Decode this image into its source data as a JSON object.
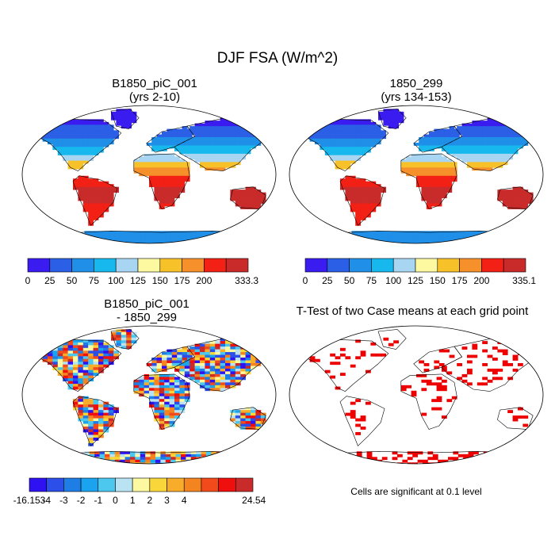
{
  "title": "DJF FSA (W/m^2)",
  "palettes": {
    "absolute": [
      "#3a1cf0",
      "#2a5fe6",
      "#1f8fe8",
      "#16b8ee",
      "#a8d6f2",
      "#fcf9a0",
      "#f7c12a",
      "#f5902a",
      "#f22015",
      "#c92b2b"
    ],
    "difference": [
      "#2e12f2",
      "#2b4fe8",
      "#1f7ee6",
      "#1aa3ee",
      "#4cc8ef",
      "#b9e3f2",
      "#fcf9a0",
      "#f9d63a",
      "#f7ad2a",
      "#f48420",
      "#f24a1a",
      "#ef100e",
      "#c92b2b"
    ],
    "significance": "#ee0000"
  },
  "panels": {
    "case1": {
      "title_line1": "B1850_piC_001",
      "title_line2": "(yrs 2-10)",
      "colorbar_labels": [
        "0",
        "25",
        "50",
        "75",
        "100",
        "125",
        "150",
        "175",
        "200",
        "333.3"
      ]
    },
    "case2": {
      "title_line1": "1850_299",
      "title_line2": "(yrs 134-153)",
      "colorbar_labels": [
        "0",
        "25",
        "50",
        "75",
        "100",
        "125",
        "150",
        "175",
        "200",
        "335.1"
      ]
    },
    "diff": {
      "title_line1": "B1850_piC_001",
      "title_line2": "- 1850_299",
      "colorbar_labels": [
        "-16.153",
        "-4",
        "-3",
        "-2",
        "-1",
        "0",
        "1",
        "2",
        "3",
        "4",
        "24.54"
      ]
    },
    "ttest": {
      "title": "T-Test of two Case means at each grid point",
      "note": "Cells are significant at 0.1 level"
    }
  }
}
